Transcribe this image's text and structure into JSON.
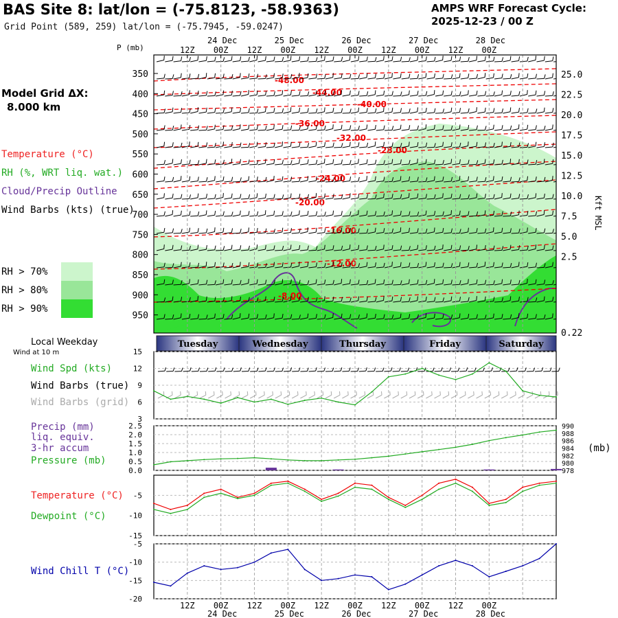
{
  "header": {
    "title": "BAS Site 8:  lat/lon = (-75.8123, -58.9363)",
    "subtitle": "Grid Point (589, 259) lat/lon = (-75.7945, -59.0247)",
    "cycle_line1": "AMPS WRF Forecast Cycle:",
    "cycle_line2": "2025-12-23 / 00  Z",
    "model_grid_line1": "Model Grid ΔX:",
    "model_grid_line2": "8.000 km"
  },
  "legend": {
    "temperature": "Temperature (°C)",
    "rh": "RH (%, WRT liq. wat.)",
    "cloud": "Cloud/Precip Outline",
    "wind": "Wind Barbs (kts) (true)",
    "rh70": "RH > 70%",
    "rh80": "RH > 80%",
    "rh90": "RH > 90%",
    "p_label": "P (mb)",
    "right_axis_label": "Kft MSL",
    "colors": {
      "temperature": "#ee0000",
      "rh": "#22aa22",
      "cloud": "#663399",
      "rh70": "#ccf5cc",
      "rh80": "#99e699",
      "rh90": "#33dd33"
    }
  },
  "time_axis": {
    "top_hours": [
      "12Z",
      "00Z",
      "12Z",
      "00Z",
      "12Z",
      "00Z",
      "12Z",
      "00Z",
      "12Z",
      "00Z"
    ],
    "top_dates": [
      "24 Dec",
      "25 Dec",
      "26 Dec",
      "27 Dec",
      "28 Dec"
    ],
    "bottom_hours": [
      "12Z",
      "00Z",
      "12Z",
      "00Z",
      "12Z",
      "00Z",
      "12Z",
      "00Z",
      "12Z",
      "00Z"
    ],
    "bottom_dates": [
      "24 Dec",
      "25 Dec",
      "26 Dec",
      "27 Dec",
      "28 Dec"
    ]
  },
  "weekday_bar": {
    "title": "Local Weekday",
    "subtitle": "Wind at 10 m",
    "days": [
      "Tuesday",
      "Wednesday",
      "Thursday",
      "Friday",
      "Saturday"
    ]
  },
  "chart_data": [
    {
      "type": "heatmap",
      "name": "cross-section",
      "pressure_levels": [
        "350",
        "400",
        "450",
        "500",
        "550",
        "600",
        "650",
        "700",
        "750",
        "800",
        "850",
        "900",
        "950"
      ],
      "height_ticks_kft": [
        "25.0",
        "22.5",
        "20.0",
        "17.5",
        "15.0",
        "12.5",
        "10.0",
        "7.5",
        "5.0",
        "2.5",
        "0.22"
      ],
      "temperature_contours": [
        {
          "label": "-48.00",
          "values": [
            -48
          ]
        },
        {
          "label": "-44.00",
          "values": [
            -44
          ]
        },
        {
          "label": "-40.00",
          "values": [
            -40
          ]
        },
        {
          "label": "-36.00",
          "values": [
            -36
          ]
        },
        {
          "label": "-32.00",
          "values": [
            -32
          ]
        },
        {
          "label": "-28.00",
          "values": [
            -28
          ]
        },
        {
          "label": "-24.00",
          "values": [
            -24
          ]
        },
        {
          "label": "-20.00",
          "values": [
            -20
          ]
        },
        {
          "label": "-16.00",
          "values": [
            -16
          ]
        },
        {
          "label": "-12.00",
          "values": [
            -12
          ]
        },
        {
          "label": "-8.00",
          "values": [
            -8
          ]
        }
      ]
    },
    {
      "type": "line",
      "name": "wind-speed",
      "ylabel": "Wind Spd (kts)",
      "label_barbs_true": "Wind Barbs (true)",
      "label_barbs_grid": "Wind Barbs (grid)",
      "yticks": [
        "15",
        "12",
        "9",
        "6",
        "3"
      ],
      "ylim": [
        3,
        15
      ],
      "hours": [
        0,
        6,
        12,
        18,
        24,
        30,
        36,
        42,
        48,
        54,
        60,
        66,
        72,
        78,
        84,
        90,
        96,
        102,
        108,
        114,
        120,
        126,
        132,
        138,
        144
      ],
      "values": [
        8.0,
        6.5,
        7.0,
        6.5,
        5.8,
        6.8,
        6.0,
        6.5,
        5.6,
        6.3,
        6.7,
        6.0,
        5.5,
        7.8,
        10.5,
        11.0,
        12.0,
        10.8,
        10.0,
        11.0,
        13.0,
        11.5,
        8.0,
        7.2,
        6.9
      ]
    },
    {
      "type": "line",
      "name": "precip-pressure",
      "label_precip": "Precip (mm)",
      "label_liq": "liq. equiv.",
      "label_accum": "3-hr accum",
      "label_pressure": "Pressure (mb)",
      "right_unit": "(mb)",
      "precip_ticks": [
        "2.5",
        "2.0",
        "1.5",
        "1.0",
        "0.5",
        "0.0"
      ],
      "pressure_ticks": [
        "990",
        "988",
        "986",
        "984",
        "982",
        "980",
        "978"
      ],
      "precip_ylim": [
        0,
        2.5
      ],
      "pressure_ylim": [
        978,
        990
      ],
      "hours": [
        0,
        6,
        12,
        18,
        24,
        30,
        36,
        42,
        48,
        54,
        60,
        66,
        72,
        78,
        84,
        90,
        96,
        102,
        108,
        114,
        120,
        126,
        132,
        138,
        144
      ],
      "pressure": [
        979.5,
        980.3,
        980.6,
        980.9,
        981.1,
        981.2,
        981.4,
        981.1,
        980.8,
        980.6,
        980.6,
        980.8,
        981.0,
        981.4,
        981.8,
        982.4,
        983.0,
        983.6,
        984.2,
        985.0,
        986.0,
        986.8,
        987.5,
        988.3,
        988.8
      ],
      "precip": [
        0,
        0,
        0,
        0,
        0,
        0,
        0,
        0.15,
        0,
        0,
        0,
        0.05,
        0,
        0,
        0,
        0,
        0,
        0,
        0,
        0,
        0.05,
        0,
        0,
        0,
        0.08
      ]
    },
    {
      "type": "line",
      "name": "temperature-dewpoint",
      "label_temp": "Temperature (°C)",
      "label_dew": "Dewpoint (°C)",
      "yticks": [
        "-5",
        "-10",
        "-15"
      ],
      "ylim": [
        -15,
        0
      ],
      "hours": [
        0,
        6,
        12,
        18,
        24,
        30,
        36,
        42,
        48,
        54,
        60,
        66,
        72,
        78,
        84,
        90,
        96,
        102,
        108,
        114,
        120,
        126,
        132,
        138,
        144
      ],
      "temperature": [
        -7.0,
        -8.5,
        -7.5,
        -4.5,
        -3.5,
        -5.5,
        -4.5,
        -2.0,
        -1.5,
        -3.5,
        -6.0,
        -4.5,
        -2.0,
        -2.5,
        -5.5,
        -7.5,
        -5.0,
        -2.0,
        -1.0,
        -3.0,
        -7.0,
        -6.0,
        -3.0,
        -2.0,
        -1.5
      ],
      "dewpoint": [
        -8.5,
        -9.5,
        -8.5,
        -5.5,
        -4.5,
        -5.8,
        -5.0,
        -2.5,
        -2.0,
        -4.0,
        -6.5,
        -5.2,
        -3.0,
        -3.5,
        -6.0,
        -8.0,
        -6.0,
        -3.5,
        -2.0,
        -4.0,
        -7.5,
        -6.8,
        -4.0,
        -2.5,
        -2.0
      ]
    },
    {
      "type": "line",
      "name": "wind-chill",
      "label": "Wind Chill T (°C)",
      "yticks": [
        "-5",
        "-10",
        "-15",
        "-20"
      ],
      "ylim": [
        -20,
        -5
      ],
      "hours": [
        0,
        6,
        12,
        18,
        24,
        30,
        36,
        42,
        48,
        54,
        60,
        66,
        72,
        78,
        84,
        90,
        96,
        102,
        108,
        114,
        120,
        126,
        132,
        138,
        144
      ],
      "values": [
        -15.5,
        -16.5,
        -13.0,
        -11.0,
        -12.0,
        -11.5,
        -10.0,
        -7.5,
        -6.5,
        -12.0,
        -15.0,
        -14.5,
        -13.5,
        -14.0,
        -17.5,
        -16.0,
        -13.5,
        -11.0,
        -9.5,
        -11.0,
        -14.0,
        -12.5,
        -11.0,
        -9.0,
        -5.0
      ]
    }
  ]
}
